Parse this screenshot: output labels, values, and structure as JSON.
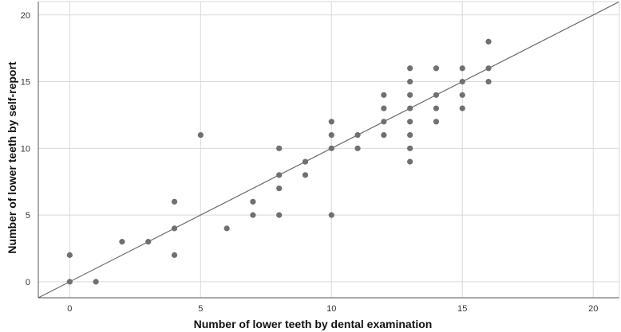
{
  "chart_data": {
    "type": "scatter",
    "title": "",
    "xlabel": "Number of lower teeth by dental examination",
    "ylabel": "Number of lower teeth by self-report",
    "xlim": [
      -1.2,
      21
    ],
    "ylim": [
      -1.2,
      21
    ],
    "xticks": [
      0,
      5,
      10,
      15,
      20
    ],
    "yticks": [
      0,
      5,
      10,
      15,
      20
    ],
    "grid": true,
    "legend": "none",
    "reference_line": {
      "type": "identity",
      "from": [
        -1.2,
        -1.2
      ],
      "to": [
        21,
        21
      ]
    },
    "colors": {
      "points": "#707070",
      "line": "#6b6b6b",
      "grid": "#d9d9d9",
      "axis": "#555555"
    },
    "points": [
      [
        0,
        0
      ],
      [
        0,
        2
      ],
      [
        1,
        0
      ],
      [
        2,
        3
      ],
      [
        3,
        3
      ],
      [
        4,
        2
      ],
      [
        4,
        4
      ],
      [
        4,
        6
      ],
      [
        5,
        11
      ],
      [
        6,
        4
      ],
      [
        7,
        5
      ],
      [
        7,
        6
      ],
      [
        8,
        5
      ],
      [
        8,
        7
      ],
      [
        8,
        8
      ],
      [
        8,
        10
      ],
      [
        9,
        8
      ],
      [
        9,
        9
      ],
      [
        10,
        5
      ],
      [
        10,
        10
      ],
      [
        10,
        11
      ],
      [
        10,
        12
      ],
      [
        11,
        10
      ],
      [
        11,
        11
      ],
      [
        12,
        11
      ],
      [
        12,
        12
      ],
      [
        12,
        13
      ],
      [
        12,
        14
      ],
      [
        13,
        9
      ],
      [
        13,
        10
      ],
      [
        13,
        11
      ],
      [
        13,
        12
      ],
      [
        13,
        13
      ],
      [
        13,
        14
      ],
      [
        13,
        15
      ],
      [
        13,
        16
      ],
      [
        14,
        12
      ],
      [
        14,
        13
      ],
      [
        14,
        14
      ],
      [
        14,
        16
      ],
      [
        15,
        13
      ],
      [
        15,
        14
      ],
      [
        15,
        15
      ],
      [
        15,
        16
      ],
      [
        16,
        15
      ],
      [
        16,
        16
      ],
      [
        16,
        18
      ]
    ]
  }
}
